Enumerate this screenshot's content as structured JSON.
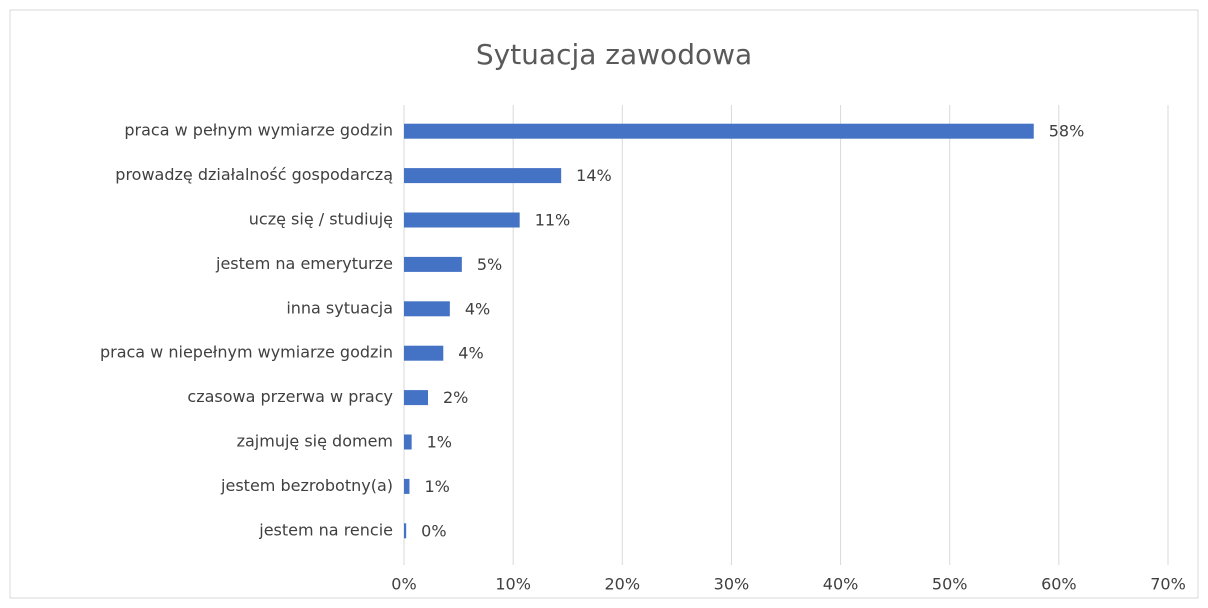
{
  "chart_data": {
    "type": "bar",
    "orientation": "horizontal",
    "title": "Sytuacja zawodowa",
    "categories": [
      "praca w pełnym wymiarze godzin",
      "prowadzę działalność gospodarczą",
      "uczę się / studiuję",
      "jestem na emeryturze",
      "inna sytuacja",
      "praca w niepełnym wymiarze godzin",
      "czasowa przerwa w pracy",
      "zajmuję się domem",
      "jestem bezrobotny(a)",
      "jestem na rencie"
    ],
    "values": [
      57.7,
      14.4,
      10.6,
      5.3,
      4.2,
      3.6,
      2.2,
      0.7,
      0.5,
      0.2
    ],
    "value_labels": [
      "58%",
      "14%",
      "11%",
      "5%",
      "4%",
      "4%",
      "2%",
      "1%",
      "1%",
      "0%"
    ],
    "color": "#4472c4",
    "xlim": [
      0,
      70
    ],
    "xticks": [
      {
        "value": 0,
        "label": "0%"
      },
      {
        "value": 10,
        "label": "10%"
      },
      {
        "value": 20,
        "label": "20%"
      },
      {
        "value": 30,
        "label": "30%"
      },
      {
        "value": 40,
        "label": "40%"
      },
      {
        "value": 50,
        "label": "50%"
      },
      {
        "value": 60,
        "label": "60%"
      },
      {
        "value": 70,
        "label": "70%"
      }
    ],
    "grid": true
  }
}
